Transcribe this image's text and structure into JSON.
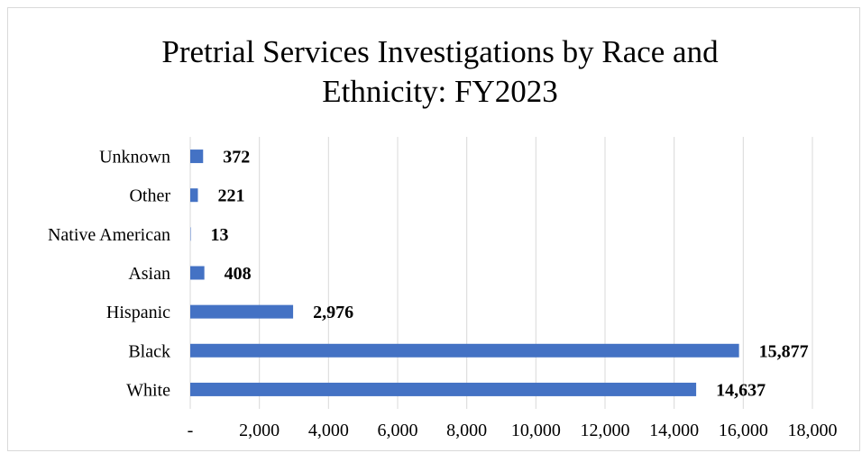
{
  "chart_data": {
    "type": "bar",
    "orientation": "horizontal",
    "title_lines": [
      "Pretrial Services Investigations by Race and",
      "Ethnicity: FY2023"
    ],
    "categories": [
      "Unknown",
      "Other",
      "Native American",
      "Asian",
      "Hispanic",
      "Black",
      "White"
    ],
    "values": [
      372,
      221,
      13,
      408,
      2976,
      15877,
      14637
    ],
    "value_labels": [
      "372",
      "221",
      "13",
      "408",
      "2,976",
      "15,877",
      "14,637"
    ],
    "xlim": [
      0,
      18000
    ],
    "x_ticks": [
      0,
      2000,
      4000,
      6000,
      8000,
      10000,
      12000,
      14000,
      16000,
      18000
    ],
    "x_tick_labels": [
      "-",
      "2,000",
      "4,000",
      "6,000",
      "8,000",
      "10,000",
      "12,000",
      "14,000",
      "16,000",
      "18,000"
    ],
    "grid": true,
    "legend": "none",
    "bar_color": "#4472c4"
  }
}
